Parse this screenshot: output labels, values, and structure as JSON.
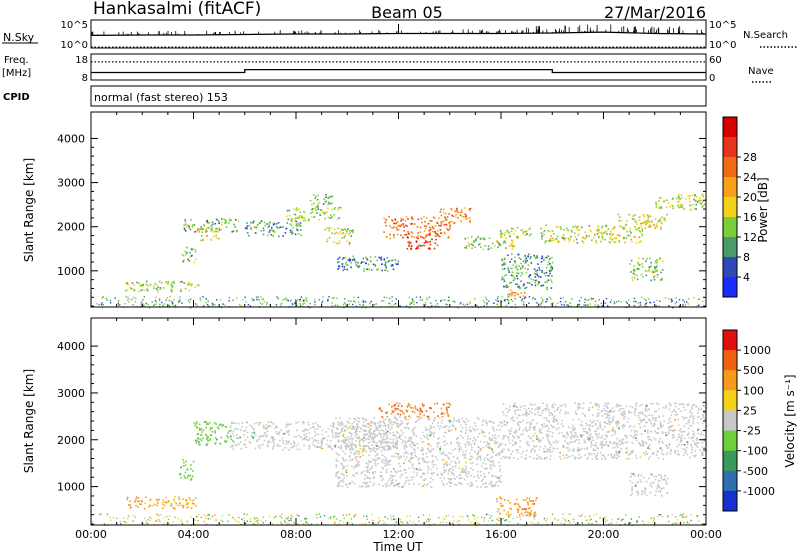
{
  "header": {
    "station": "Hankasalmi (fitACF)",
    "beam": "Beam 05",
    "date": "27/Mar/2016"
  },
  "noise_panel": {
    "left_label": "N.Sky",
    "left_ticks": [
      "10^5",
      "10^0"
    ],
    "right_label": "N.Search",
    "right_ticks": [
      "10^5",
      "10^0"
    ]
  },
  "freq_panel": {
    "left_label_line1": "Freq.",
    "left_label_line2": "[MHz]",
    "left_ticks": [
      "18",
      "8"
    ],
    "right_label": "Nave",
    "right_ticks": [
      "60",
      "0"
    ]
  },
  "cpid_panel": {
    "label": "CPID",
    "text": "normal (fast stereo) 153"
  },
  "x_axis": {
    "ticks": [
      "00:00",
      "04:00",
      "08:00",
      "12:00",
      "16:00",
      "20:00",
      "00:00"
    ],
    "label": "Time UT"
  },
  "y_axis": {
    "label": "Slant Range [km]",
    "ticks": [
      "1000",
      "2000",
      "3000",
      "4000"
    ]
  },
  "power_colorbar": {
    "label": "Power [dB]",
    "ticks": [
      "4",
      "8",
      "12",
      "16",
      "20",
      "24",
      "28"
    ],
    "colors": [
      "#1a2cff",
      "#2f4ab7",
      "#4a9a6a",
      "#7ccf3a",
      "#f2d31a",
      "#f5a21a",
      "#f06a14",
      "#e8321a",
      "#d60000"
    ]
  },
  "velocity_colorbar": {
    "label": "Velocity [m s⁻¹]",
    "ticks": [
      "1000",
      "500",
      "100",
      "25",
      "-25",
      "-100",
      "-500",
      "-1000"
    ],
    "colors": [
      "#1830d0",
      "#2e6fb0",
      "#3a9a5a",
      "#6fcf3a",
      "#c8c8c8",
      "#f5d21a",
      "#f59a1a",
      "#f06010",
      "#e01010"
    ]
  },
  "chart_data": [
    {
      "type": "line",
      "title": "N.Sky / N.Search",
      "x": [
        "00:00",
        "02:00",
        "04:00",
        "06:00",
        "08:00",
        "10:00",
        "12:00",
        "14:00",
        "16:00",
        "18:00",
        "20:00",
        "22:00",
        "24:00"
      ],
      "series": [
        {
          "name": "N.Sky",
          "values": [
            2.2,
            2.3,
            2.3,
            2.4,
            2.5,
            2.5,
            2.6,
            2.6,
            2.6,
            2.7,
            2.9,
            2.6,
            2.5
          ]
        },
        {
          "name": "N.Search",
          "values": [
            0.0,
            0.0,
            0.0,
            0.0,
            0.0,
            0.0,
            0.0,
            0.0,
            0.0,
            0.0,
            0.0,
            0.0,
            0.0
          ]
        }
      ],
      "ylabel": "N.Sky",
      "y2label": "N.Search",
      "ylim": [
        0,
        5
      ]
    },
    {
      "type": "line",
      "title": "Freq. / Nave",
      "x": [
        "00:00",
        "06:00",
        "06:00",
        "18:00",
        "18:00",
        "24:00"
      ],
      "series": [
        {
          "name": "Freq.",
          "values": [
            10.5,
            10.5,
            11.8,
            11.8,
            10.5,
            10.5
          ]
        },
        {
          "name": "Nave",
          "values": [
            44,
            44,
            44,
            44,
            44,
            44
          ]
        }
      ],
      "ylabel": "Freq. [MHz]",
      "ylim": [
        8,
        18
      ],
      "y2label": "Nave",
      "y2lim": [
        0,
        60
      ]
    },
    {
      "type": "heatmap",
      "title": "Power",
      "xlabel": "Time UT",
      "ylabel": "Slant Range [km]",
      "xlim": [
        0,
        24
      ],
      "ylim": [
        180,
        4600
      ],
      "colorbar": "Power [dB]",
      "clim": [
        0,
        30
      ],
      "regions": [
        {
          "t0": 1.3,
          "t1": 4.2,
          "r0": 540,
          "r1": 780,
          "value": 10
        },
        {
          "t0": 3.5,
          "t1": 4.1,
          "r0": 1200,
          "r1": 1550,
          "value": 9
        },
        {
          "t0": 3.6,
          "t1": 5.8,
          "r0": 1900,
          "r1": 2200,
          "value": 9
        },
        {
          "t0": 4.1,
          "t1": 5.0,
          "r0": 1700,
          "r1": 2000,
          "value": 14
        },
        {
          "t0": 6.0,
          "t1": 8.2,
          "r0": 1800,
          "r1": 2150,
          "value": 7
        },
        {
          "t0": 7.6,
          "t1": 9.7,
          "r0": 2150,
          "r1": 2450,
          "value": 11
        },
        {
          "t0": 8.5,
          "t1": 9.4,
          "r0": 2450,
          "r1": 2750,
          "value": 9
        },
        {
          "t0": 9.1,
          "t1": 10.2,
          "r0": 1600,
          "r1": 2000,
          "value": 12
        },
        {
          "t0": 9.6,
          "t1": 12.0,
          "r0": 1000,
          "r1": 1350,
          "value": 6
        },
        {
          "t0": 11.4,
          "t1": 14.0,
          "r0": 1750,
          "r1": 2250,
          "value": 22
        },
        {
          "t0": 12.3,
          "t1": 13.5,
          "r0": 1500,
          "r1": 1800,
          "value": 26
        },
        {
          "t0": 13.6,
          "t1": 14.8,
          "r0": 2100,
          "r1": 2450,
          "value": 20
        },
        {
          "t0": 14.5,
          "t1": 16.5,
          "r0": 1500,
          "r1": 1800,
          "value": 10
        },
        {
          "t0": 15.8,
          "t1": 17.2,
          "r0": 1750,
          "r1": 2000,
          "value": 12
        },
        {
          "t0": 16.0,
          "t1": 18.0,
          "r0": 600,
          "r1": 1400,
          "value": 7
        },
        {
          "t0": 16.2,
          "t1": 17.0,
          "r0": 420,
          "r1": 600,
          "value": 18
        },
        {
          "t0": 17.5,
          "t1": 21.5,
          "r0": 1650,
          "r1": 2050,
          "value": 12
        },
        {
          "t0": 20.5,
          "t1": 22.5,
          "r0": 1950,
          "r1": 2300,
          "value": 13
        },
        {
          "t0": 21.0,
          "t1": 22.3,
          "r0": 800,
          "r1": 1300,
          "value": 10
        },
        {
          "t0": 22.0,
          "t1": 24.0,
          "r0": 2400,
          "r1": 2750,
          "value": 12
        }
      ]
    },
    {
      "type": "heatmap",
      "title": "Velocity",
      "xlabel": "Time UT",
      "ylabel": "Slant Range [km]",
      "xlim": [
        0,
        24
      ],
      "ylim": [
        180,
        4600
      ],
      "colorbar": "Velocity [m s⁻¹]",
      "clim": [
        -1000,
        1000
      ],
      "regions": [
        {
          "t0": 1.3,
          "t1": 4.2,
          "r0": 540,
          "r1": 800,
          "value": -120
        },
        {
          "t0": 3.4,
          "t1": 4.0,
          "r0": 1150,
          "r1": 1600,
          "value": 60
        },
        {
          "t0": 4.0,
          "t1": 5.5,
          "r0": 1900,
          "r1": 2400,
          "value": 80
        },
        {
          "t0": 5.4,
          "t1": 12.0,
          "r0": 1800,
          "r1": 2400,
          "value": 0
        },
        {
          "t0": 9.5,
          "t1": 16.0,
          "r0": 1000,
          "r1": 2500,
          "value": 0
        },
        {
          "t0": 10.4,
          "t1": 10.7,
          "r0": 1700,
          "r1": 1900,
          "value": -80
        },
        {
          "t0": 11.2,
          "t1": 14.0,
          "r0": 2500,
          "r1": 2800,
          "value": -500
        },
        {
          "t0": 15.8,
          "t1": 17.4,
          "r0": 400,
          "r1": 800,
          "value": -400
        },
        {
          "t0": 16.0,
          "t1": 24.0,
          "r0": 1600,
          "r1": 2800,
          "value": 0
        },
        {
          "t0": 21.0,
          "t1": 22.5,
          "r0": 800,
          "r1": 1300,
          "value": 0
        }
      ]
    }
  ]
}
